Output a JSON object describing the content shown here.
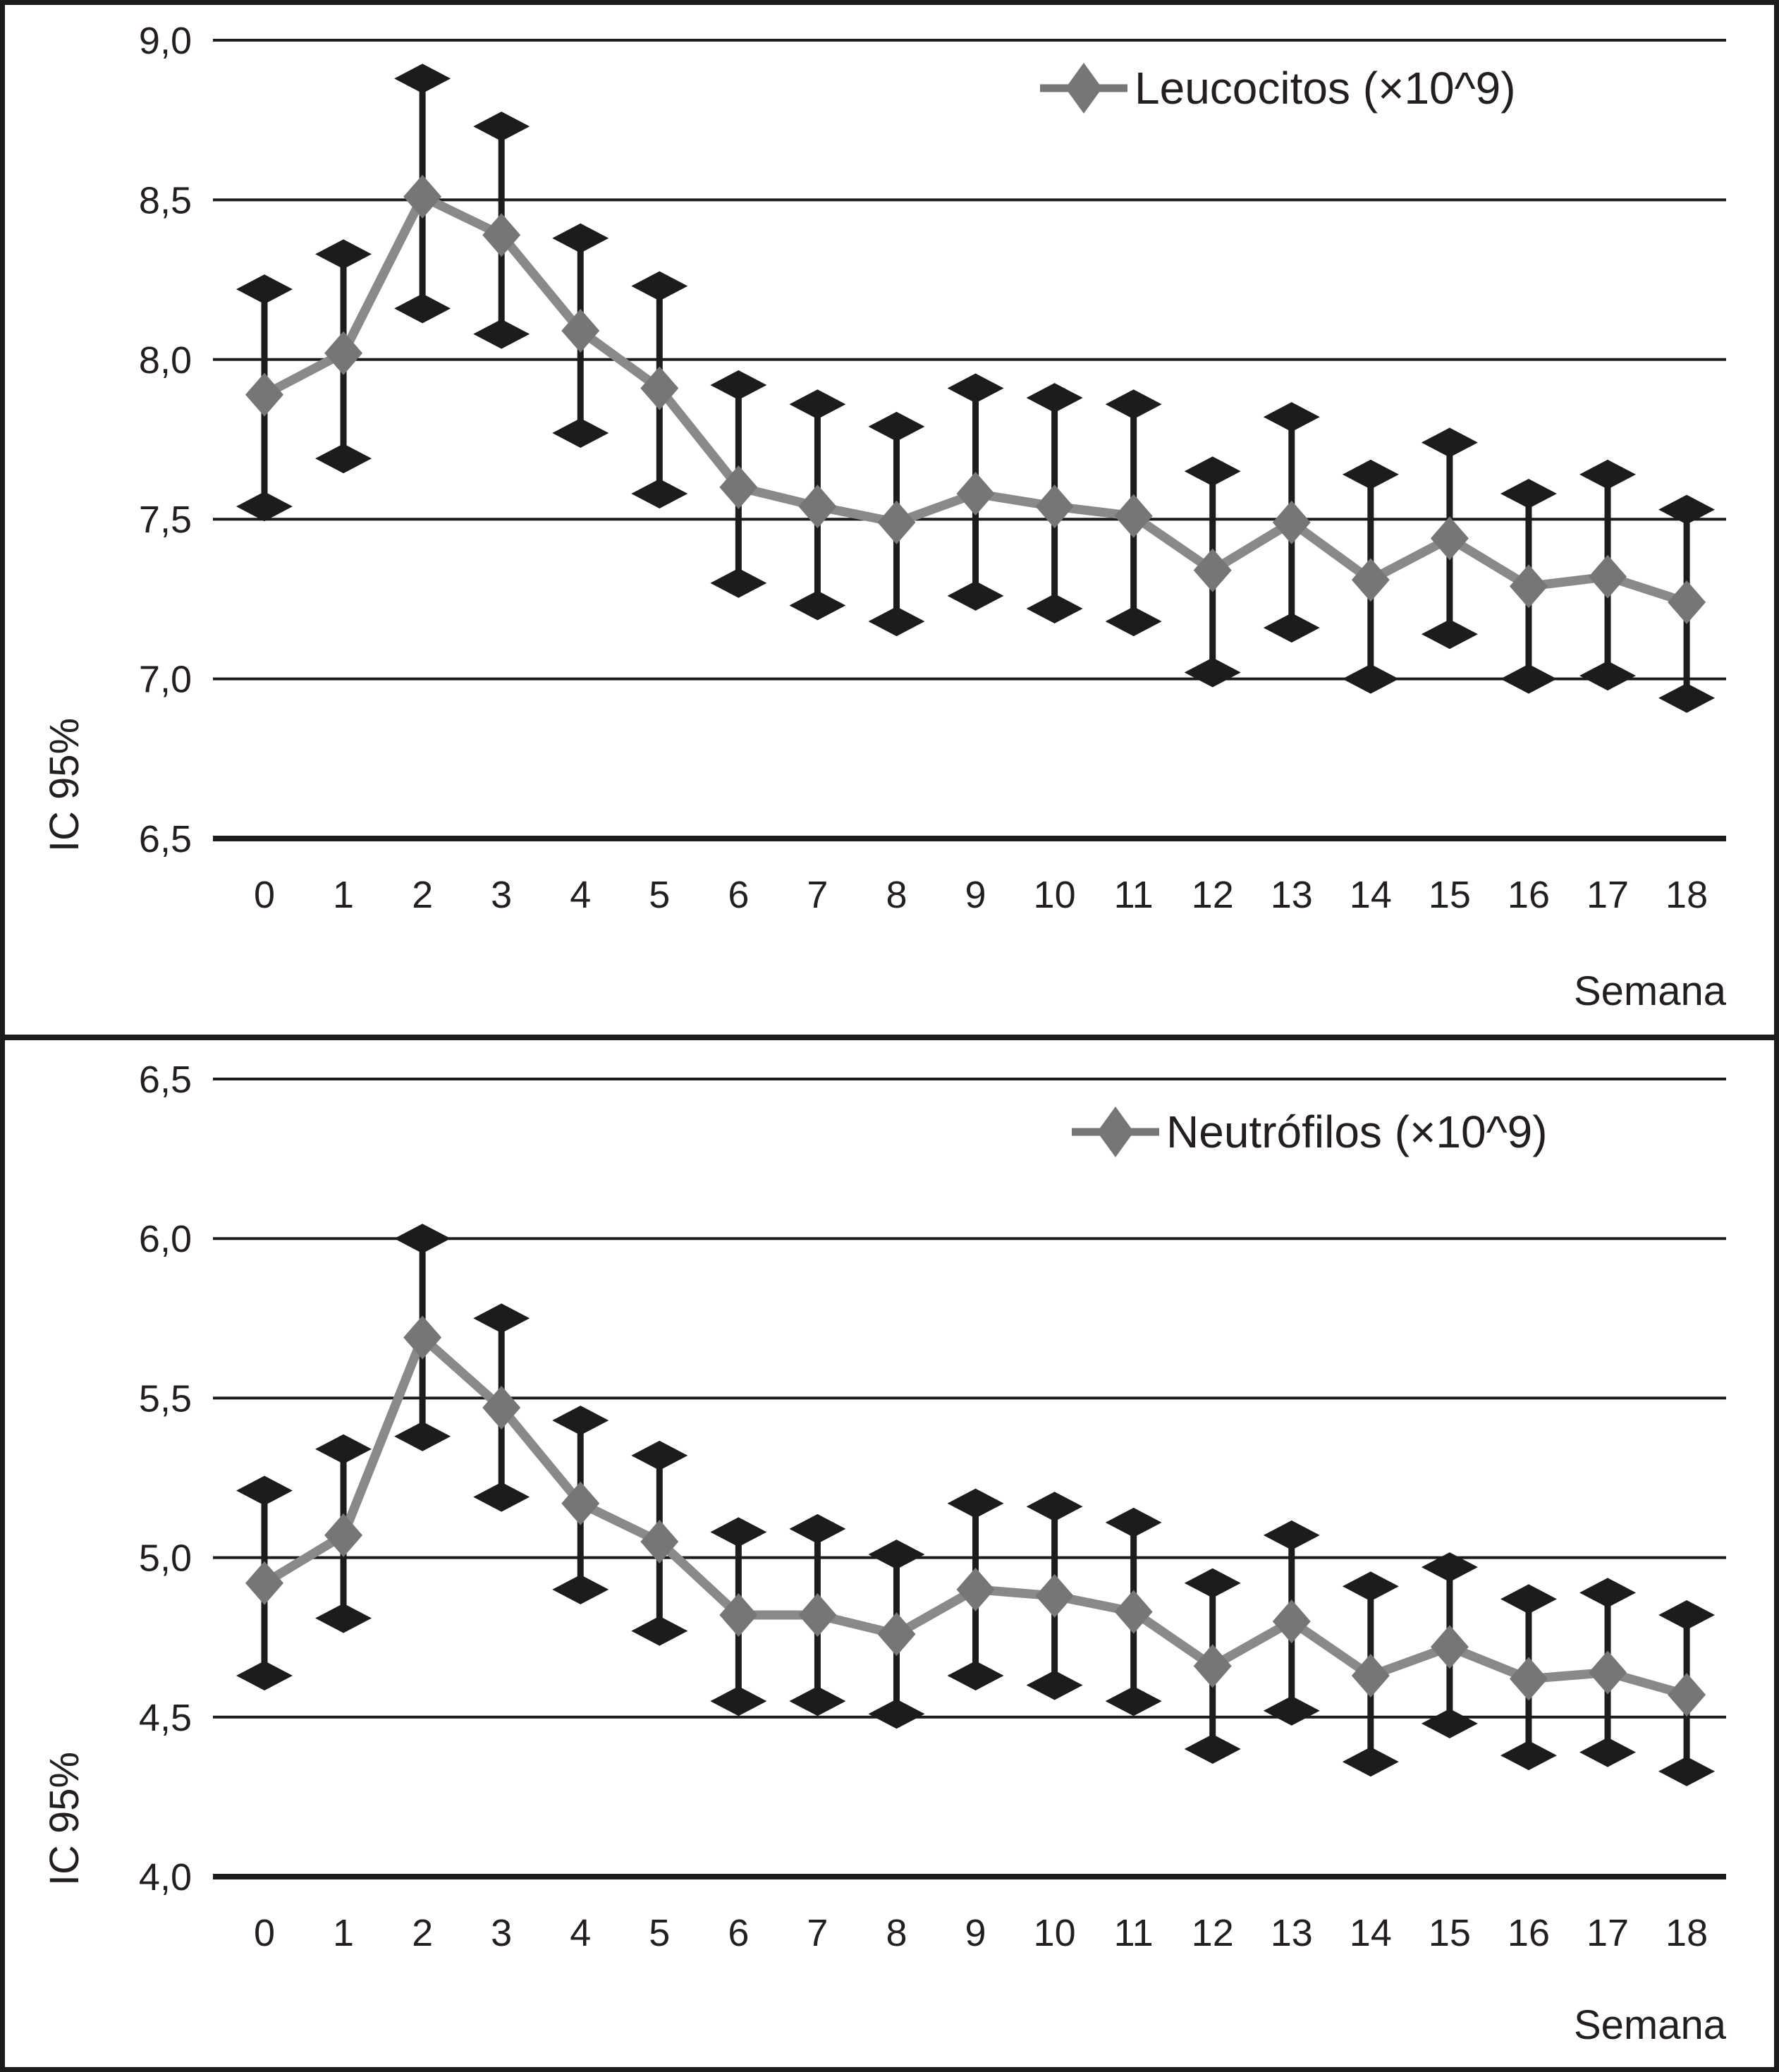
{
  "figure": {
    "x_axis_label": "Semana",
    "y_axis_label": "IC 95%",
    "colors": {
      "background": "#ffffff",
      "series_gray": "#767676",
      "series_line_gray": "#898989",
      "error_black": "#1d1b1c",
      "text": "#231f20",
      "gridline": "#1d1b1c"
    }
  },
  "chart_data": [
    {
      "type": "line",
      "title": "",
      "legend": "Leucocitos (×10^9)",
      "legend_position": "top-right",
      "xlabel": "Semana",
      "ylabel": "IC 95%",
      "grid": true,
      "error_bars": "IC 95%",
      "ylim": [
        6.5,
        9.0
      ],
      "y_ticks": [
        {
          "label": "9,0",
          "value": 9.0
        },
        {
          "label": "8,5",
          "value": 8.5
        },
        {
          "label": "8,0",
          "value": 8.0
        },
        {
          "label": "7,5",
          "value": 7.5
        },
        {
          "label": "7,0",
          "value": 7.0
        },
        {
          "label": "6,5",
          "value": 6.5
        }
      ],
      "x": [
        0,
        1,
        2,
        3,
        4,
        5,
        6,
        7,
        8,
        9,
        10,
        11,
        12,
        13,
        14,
        15,
        16,
        17,
        18
      ],
      "x_labels": [
        "0",
        "1",
        "2",
        "3",
        "4",
        "5",
        "6",
        "7",
        "8",
        "9",
        "10",
        "11",
        "12",
        "13",
        "14",
        "15",
        "16",
        "17",
        "18"
      ],
      "series": [
        {
          "name": "Leucocitos (×10^9)",
          "values": [
            7.89,
            8.02,
            8.51,
            8.39,
            8.09,
            7.91,
            7.6,
            7.54,
            7.49,
            7.58,
            7.54,
            7.51,
            7.34,
            7.49,
            7.31,
            7.44,
            7.29,
            7.32,
            7.24
          ],
          "ci_low": [
            7.54,
            7.69,
            8.16,
            8.08,
            7.77,
            7.58,
            7.3,
            7.23,
            7.18,
            7.26,
            7.22,
            7.18,
            7.02,
            7.16,
            7.0,
            7.14,
            7.0,
            7.01,
            6.94
          ],
          "ci_high": [
            8.22,
            8.33,
            8.88,
            8.73,
            8.38,
            8.23,
            7.92,
            7.86,
            7.79,
            7.91,
            7.88,
            7.86,
            7.65,
            7.82,
            7.64,
            7.74,
            7.58,
            7.64,
            7.53
          ]
        }
      ]
    },
    {
      "type": "line",
      "title": "",
      "legend": "Neutrófilos (×10^9)",
      "legend_position": "top-right",
      "xlabel": "Semana",
      "ylabel": "IC 95%",
      "grid": true,
      "error_bars": "IC 95%",
      "ylim": [
        4.0,
        6.5
      ],
      "y_ticks": [
        {
          "label": "6,5",
          "value": 6.5
        },
        {
          "label": "6,0",
          "value": 6.0
        },
        {
          "label": "5,5",
          "value": 5.5
        },
        {
          "label": "5,0",
          "value": 5.0
        },
        {
          "label": "4,5",
          "value": 4.5
        },
        {
          "label": "4,0",
          "value": 4.0
        }
      ],
      "x": [
        0,
        1,
        2,
        3,
        4,
        5,
        6,
        7,
        8,
        9,
        10,
        11,
        12,
        13,
        14,
        15,
        16,
        17,
        18
      ],
      "x_labels": [
        "0",
        "1",
        "2",
        "3",
        "4",
        "5",
        "6",
        "7",
        "8",
        "9",
        "10",
        "11",
        "12",
        "13",
        "14",
        "15",
        "16",
        "17",
        "18"
      ],
      "series": [
        {
          "name": "Neutrófilos (×10^9)",
          "values": [
            4.92,
            5.07,
            5.69,
            5.47,
            5.17,
            5.05,
            4.82,
            4.82,
            4.76,
            4.9,
            4.88,
            4.83,
            4.66,
            4.8,
            4.63,
            4.72,
            4.62,
            4.64,
            4.57
          ],
          "ci_low": [
            4.63,
            4.81,
            5.38,
            5.19,
            4.9,
            4.77,
            4.55,
            4.55,
            4.51,
            4.63,
            4.6,
            4.55,
            4.4,
            4.52,
            4.36,
            4.48,
            4.38,
            4.39,
            4.33
          ],
          "ci_high": [
            5.21,
            5.34,
            6.0,
            5.75,
            5.43,
            5.32,
            5.08,
            5.09,
            5.01,
            5.17,
            5.16,
            5.11,
            4.92,
            5.07,
            4.91,
            4.97,
            4.87,
            4.89,
            4.82
          ]
        }
      ]
    }
  ]
}
